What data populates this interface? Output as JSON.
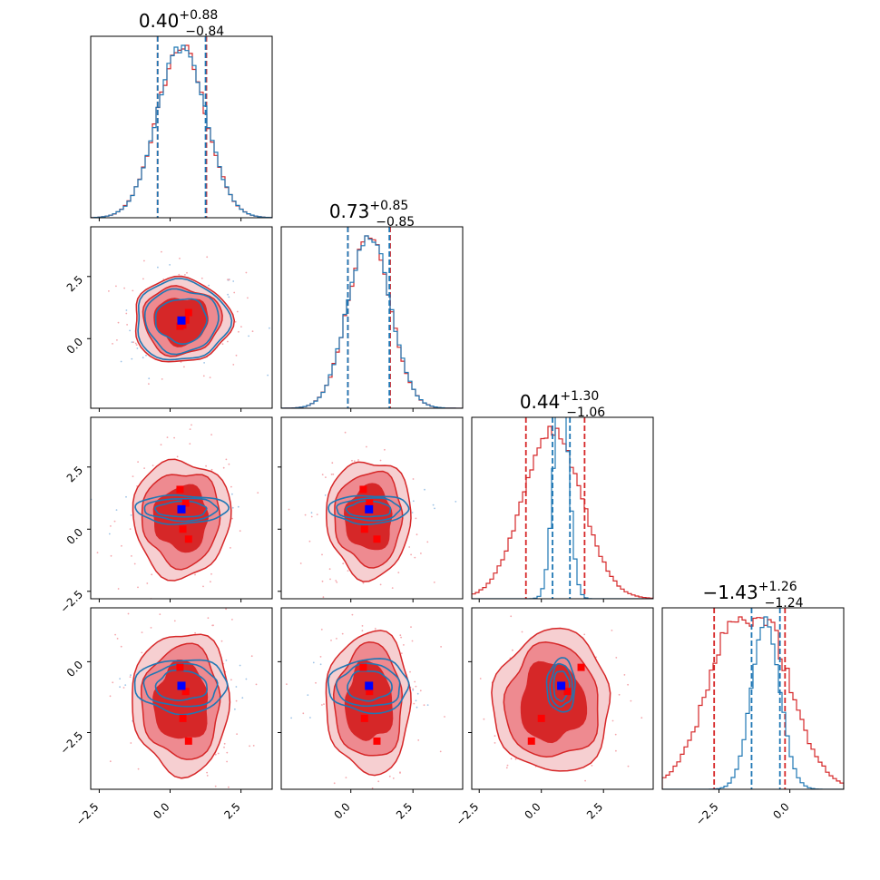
{
  "chart_data": {
    "type": "corner",
    "parameters": 4,
    "colors": {
      "red": "#d62728",
      "blue": "#1f77b4",
      "marker_blue": "#0000ff",
      "marker_red": "#ff0000"
    },
    "ranges": [
      [
        -2.8,
        3.6
      ],
      [
        -2.8,
        4.5
      ],
      [
        -2.8,
        4.5
      ],
      [
        -4.5,
        1.9
      ]
    ],
    "ticks": [
      [
        {
          "v": -2.5,
          "label": "−2.5"
        },
        {
          "v": 0.0,
          "label": "0.0"
        },
        {
          "v": 2.5,
          "label": "2.5"
        }
      ],
      [
        {
          "v": 0.0,
          "label": "0.0"
        },
        {
          "v": 2.5,
          "label": "2.5"
        }
      ],
      [
        {
          "v": -2.5,
          "label": "−2.5"
        },
        {
          "v": 0.0,
          "label": "0.0"
        },
        {
          "v": 2.5,
          "label": "2.5"
        }
      ],
      [
        {
          "v": -2.5,
          "label": "−2.5"
        },
        {
          "v": 0.0,
          "label": "0.0"
        }
      ]
    ],
    "titles": [
      {
        "median": "0.40",
        "plus": "+0.88",
        "minus": "−0.84"
      },
      {
        "median": "0.73",
        "plus": "+0.85",
        "minus": "−0.85"
      },
      {
        "median": "0.44",
        "plus": "+1.30",
        "minus": "−1.06"
      },
      {
        "median": "−1.43",
        "plus": "+1.26",
        "minus": "−1.24"
      }
    ],
    "series": [
      {
        "name": "",
        "color": "#d62728",
        "mean": [
          0.4,
          0.73,
          0.44,
          -1.43
        ],
        "sd": [
          0.86,
          0.85,
          1.18,
          1.25
        ],
        "quantiles": [
          [
            -0.44,
            1.28
          ],
          [
            -0.12,
            1.58
          ],
          [
            -0.62,
            1.74
          ],
          [
            -2.67,
            -0.17
          ]
        ]
      },
      {
        "name": "",
        "color": "#1f77b4",
        "mean": [
          0.4,
          0.73,
          0.8,
          -0.85
        ],
        "sd": [
          0.86,
          0.85,
          0.3,
          0.5
        ],
        "quantiles": [
          [
            -0.44,
            1.25
          ],
          [
            -0.12,
            1.55
          ],
          [
            0.45,
            1.15
          ],
          [
            -1.35,
            -0.35
          ]
        ]
      }
    ],
    "truth_markers": {
      "blue": [
        0.4,
        0.73,
        0.8,
        -0.85
      ],
      "red": [
        [
          0.55,
          0.75,
          1.05,
          -1.05
        ],
        [
          0.45,
          0.55,
          0.0,
          -2.0
        ],
        [
          0.35,
          0.5,
          1.6,
          -0.2
        ],
        [
          0.65,
          1.05,
          -0.4,
          -2.8
        ]
      ]
    }
  }
}
